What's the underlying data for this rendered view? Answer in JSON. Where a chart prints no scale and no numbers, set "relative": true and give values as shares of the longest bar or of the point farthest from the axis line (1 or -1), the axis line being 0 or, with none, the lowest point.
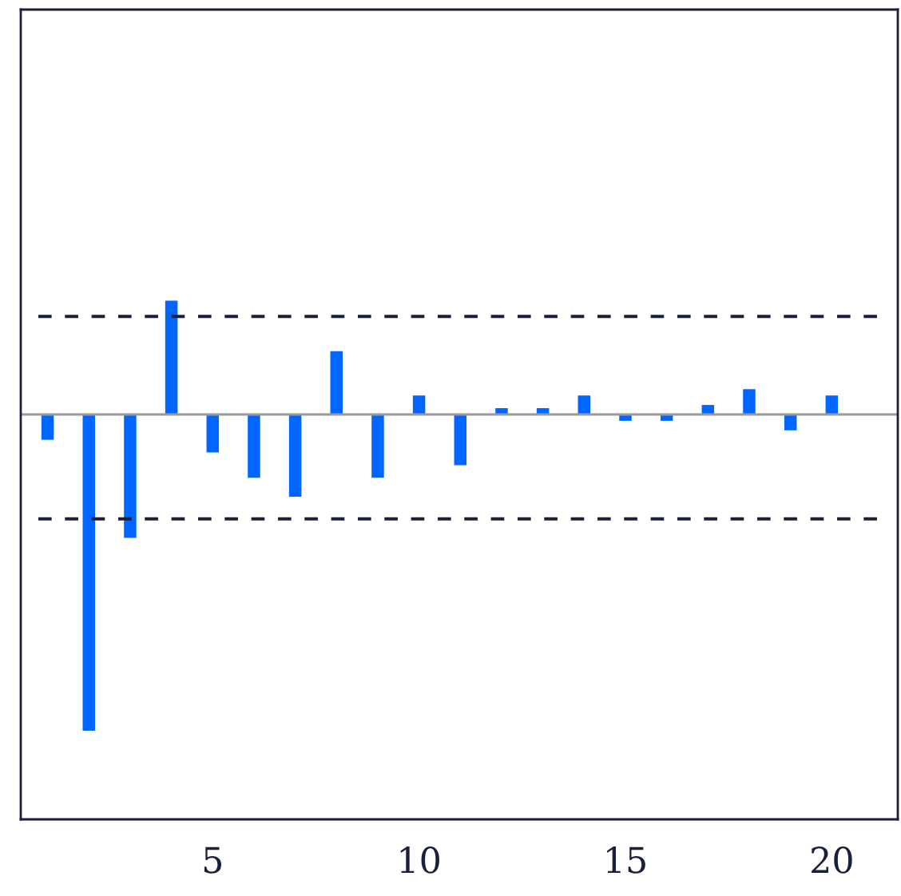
{
  "chart_data": {
    "type": "bar",
    "relative": true,
    "x": [
      1,
      2,
      3,
      4,
      5,
      6,
      7,
      8,
      9,
      10,
      11,
      12,
      13,
      14,
      15,
      16,
      17,
      18,
      19,
      20
    ],
    "values": [
      -0.08,
      -1,
      -0.39,
      0.36,
      -0.12,
      -0.2,
      -0.26,
      0.2,
      -0.2,
      0.06,
      -0.16,
      0.02,
      0.02,
      0.06,
      -0.02,
      -0.02,
      0.03,
      0.08,
      -0.05,
      0.06
    ],
    "color": "#0066ff",
    "xlim": [
      0.35,
      21.6
    ],
    "xticks": [
      5,
      10,
      15,
      20
    ],
    "ref_lines": [
      {
        "axis": "y",
        "value": 0.31,
        "line_style": "dashed",
        "color": "#1a1f3a"
      },
      {
        "axis": "y",
        "value": -0.33,
        "line_style": "dashed",
        "color": "#1a1f3a"
      }
    ],
    "grid": false,
    "legend": false
  }
}
